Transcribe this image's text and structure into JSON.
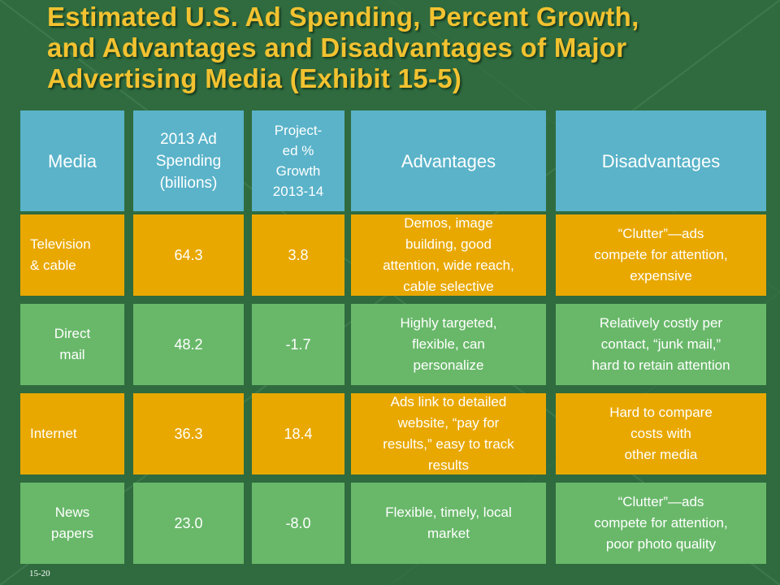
{
  "title": {
    "line1": "Estimated U.S. Ad Spending, Percent Growth,",
    "line2": "and Advantages and Disadvantages of Major",
    "line3": "Advertising Media (Exhibit 15-5)"
  },
  "headers": {
    "media": "Media",
    "spending_l1": "2013 Ad",
    "spending_l2": "Spending",
    "spending_l3": "(billions)",
    "growth_l1": "Project-",
    "growth_l2": "ed %",
    "growth_l3": "Growth",
    "growth_l4": "2013-14",
    "advantages": "Advantages",
    "disadvantages": "Disadvantages"
  },
  "rows": [
    {
      "media_l1": "Television",
      "media_l2": "& cable",
      "spending": "64.3",
      "growth": "3.8",
      "adv_l1": "Demos, image",
      "adv_l2": "building, good",
      "adv_l3": "attention, wide reach,",
      "adv_l4": "cable selective",
      "dis_l1": "“Clutter”—ads",
      "dis_l2": "compete for attention,",
      "dis_l3": "expensive"
    },
    {
      "media_l1": "Direct",
      "media_l2": "mail",
      "spending": "48.2",
      "growth": "-1.7",
      "adv_l1": "Highly targeted,",
      "adv_l2": "flexible, can",
      "adv_l3": "personalize",
      "dis_l1": "Relatively costly per",
      "dis_l2": "contact, “junk mail,”",
      "dis_l3": "hard to retain attention"
    },
    {
      "media_l1": "Internet",
      "spending": "36.3",
      "growth": "18.4",
      "adv_l1": "Ads link to detailed",
      "adv_l2": "website, “pay for",
      "adv_l3": "results,” easy to track",
      "adv_l4": "results",
      "dis_l1": "Hard to compare",
      "dis_l2": "costs with",
      "dis_l3": "other media"
    },
    {
      "media_l1": "News",
      "media_l2": "papers",
      "spending": "23.0",
      "growth": "-8.0",
      "adv_l1": "Flexible, timely, local",
      "adv_l2": "market",
      "dis_l1": "“Clutter”—ads",
      "dis_l2": "compete for attention,",
      "dis_l3": "poor photo quality"
    }
  ],
  "slide_number": "15-20",
  "colors": {
    "background": "#2f6b3e",
    "title": "#f2c230",
    "header": "#5ab3c9",
    "orange_row": "#e9a800",
    "green_row": "#69b86a"
  }
}
